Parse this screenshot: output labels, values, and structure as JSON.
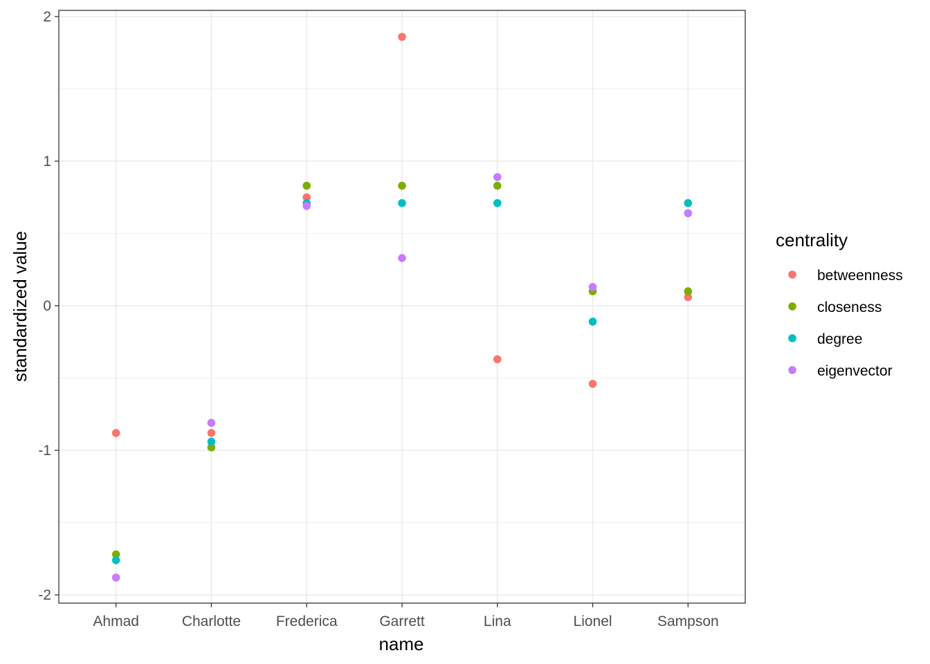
{
  "chart_data": {
    "type": "scatter",
    "xlabel": "name",
    "ylabel": "standardized value",
    "categories": [
      "Ahmad",
      "Charlotte",
      "Frederica",
      "Garrett",
      "Lina",
      "Lionel",
      "Sampson"
    ],
    "ylim": [
      -2.057,
      2.043
    ],
    "yticks": [
      -2,
      -1,
      0,
      1,
      2
    ],
    "ytick_labels": [
      "-2",
      "-1",
      "0",
      "1",
      "2"
    ],
    "grid": true,
    "legend": {
      "title": "centrality",
      "position": "right"
    },
    "series": [
      {
        "name": "betweenness",
        "color": "#F8766D",
        "values": [
          -0.88,
          -0.88,
          0.75,
          1.86,
          -0.37,
          -0.54,
          0.06
        ]
      },
      {
        "name": "closeness",
        "color": "#7CAE00",
        "values": [
          -1.72,
          -0.98,
          0.83,
          0.83,
          0.83,
          0.1,
          0.1
        ]
      },
      {
        "name": "degree",
        "color": "#00BFC4",
        "values": [
          -1.76,
          -0.94,
          0.71,
          0.71,
          0.71,
          -0.11,
          0.71
        ]
      },
      {
        "name": "eigenvector",
        "color": "#C77CFF",
        "values": [
          -1.88,
          -0.81,
          0.69,
          0.33,
          0.89,
          0.13,
          0.64
        ]
      }
    ]
  }
}
